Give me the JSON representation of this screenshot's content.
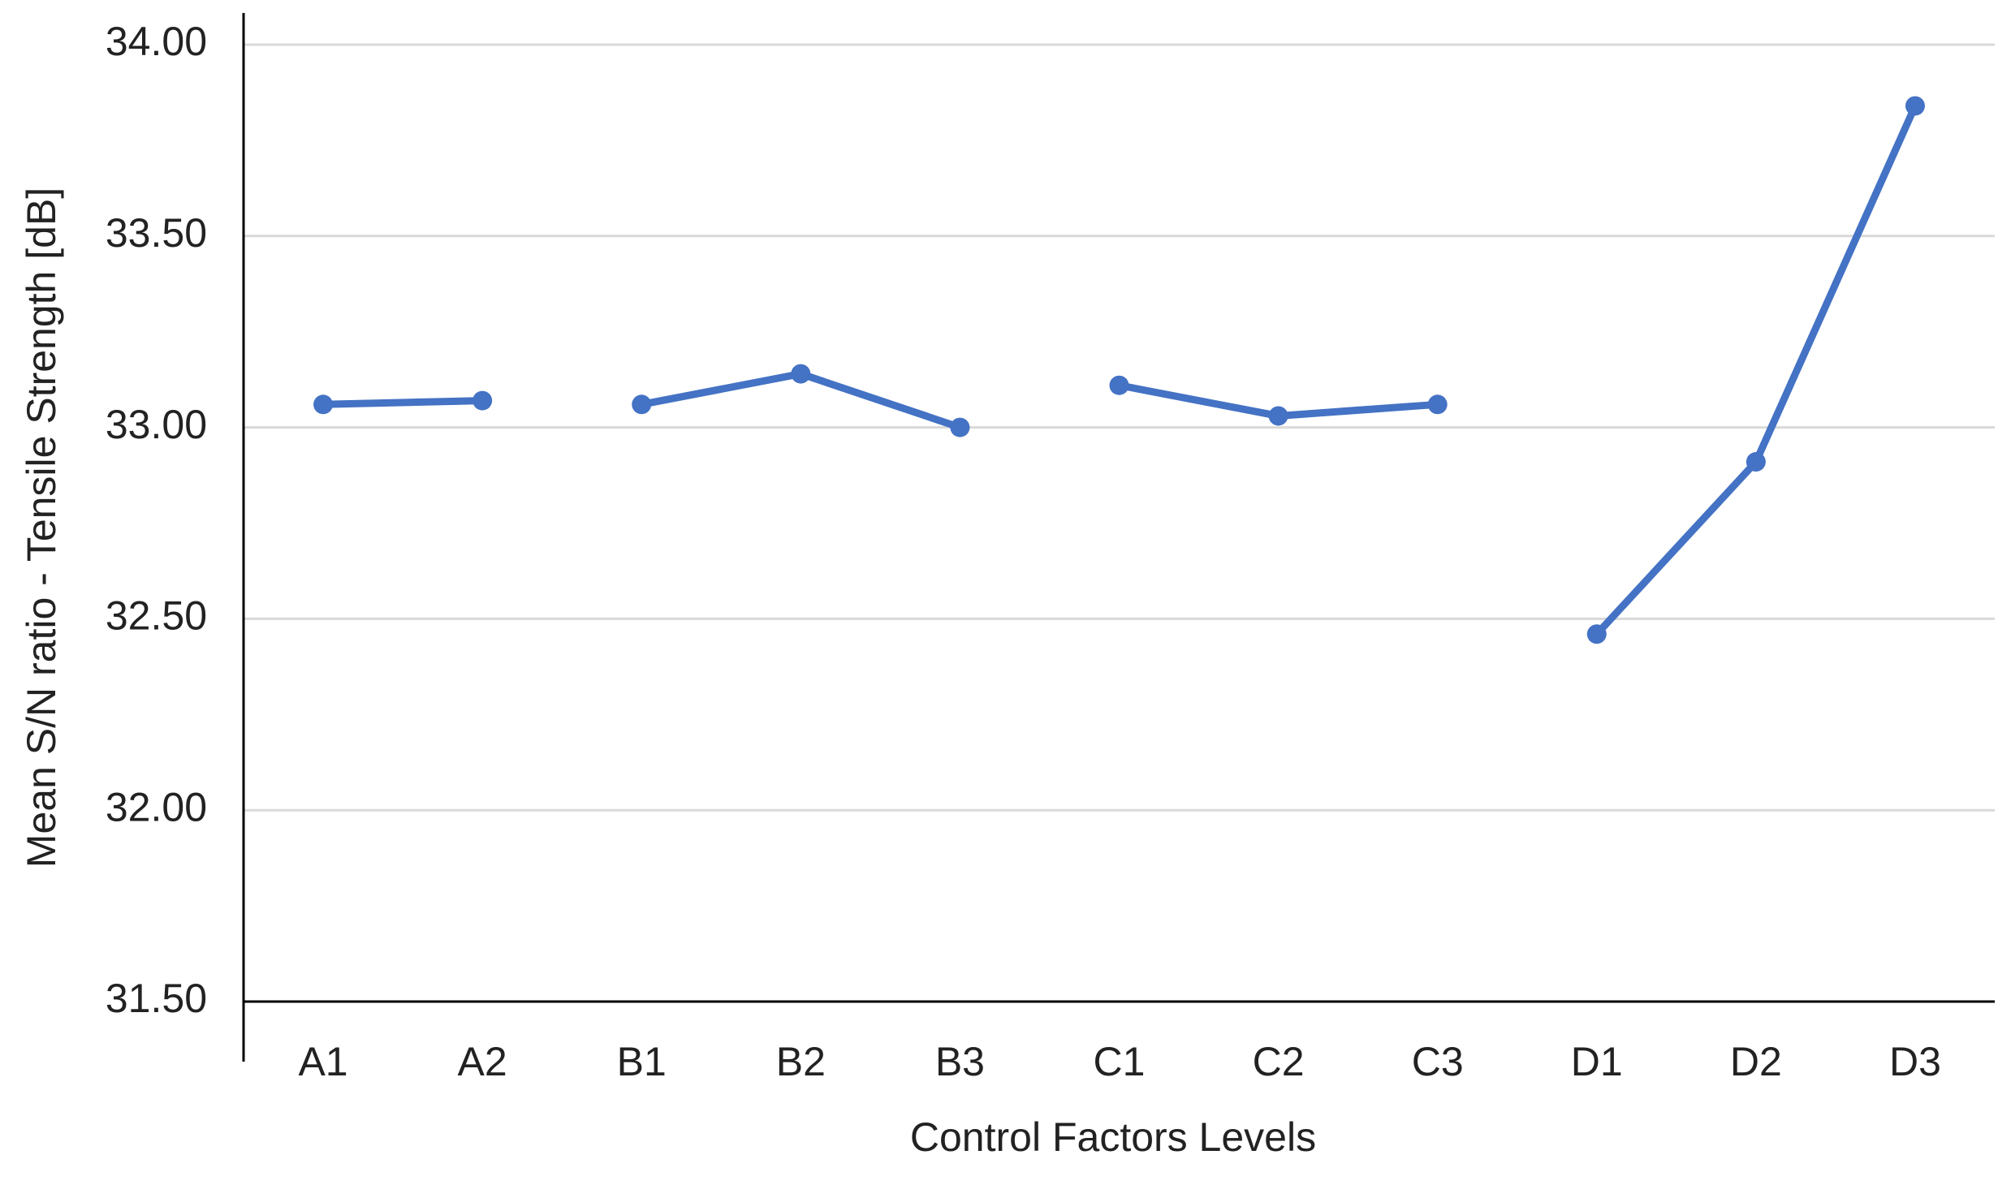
{
  "chart_data": {
    "type": "line",
    "x_label": "Control Factors Levels",
    "y_label": "Mean S/N ratio - Tensile Strength [dB]",
    "categories": [
      "A1",
      "A2",
      "B1",
      "B2",
      "B3",
      "C1",
      "C2",
      "C3",
      "D1",
      "D2",
      "D3"
    ],
    "series": [
      {
        "color": "#4472c4",
        "values": [
          33.06,
          33.07,
          null,
          null,
          null,
          null,
          null,
          null,
          null,
          null,
          null
        ]
      },
      {
        "color": "#4472c4",
        "values": [
          null,
          null,
          33.06,
          33.14,
          33.0,
          null,
          null,
          null,
          null,
          null,
          null
        ]
      },
      {
        "color": "#4472c4",
        "values": [
          null,
          null,
          null,
          null,
          null,
          33.11,
          33.03,
          33.06,
          null,
          null,
          null
        ]
      },
      {
        "color": "#4472c4",
        "values": [
          null,
          null,
          null,
          null,
          null,
          null,
          null,
          null,
          32.46,
          32.91,
          33.84
        ]
      }
    ],
    "ylim": [
      31.5,
      34.0
    ],
    "yticks": [
      {
        "value": 31.5,
        "label": "31.50"
      },
      {
        "value": 32,
        "label": "32.00"
      },
      {
        "value": 32.5,
        "label": "32.50"
      },
      {
        "value": 33,
        "label": "33.00"
      },
      {
        "value": 33.5,
        "label": "33.50"
      },
      {
        "value": 34,
        "label": "34.00"
      }
    ],
    "grid": true
  }
}
